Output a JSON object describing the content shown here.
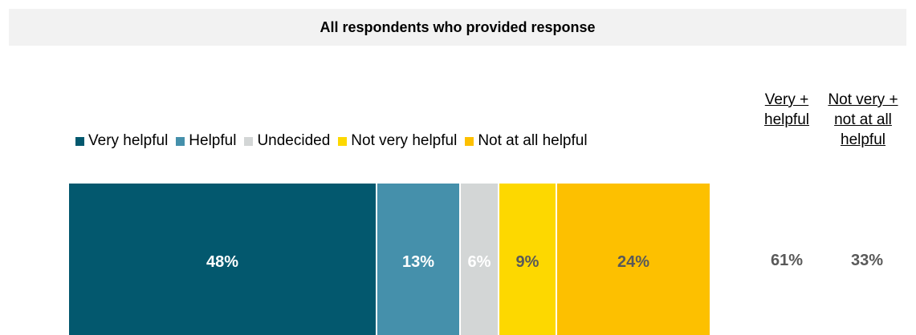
{
  "chart_data": {
    "type": "bar",
    "orientation": "horizontal-stacked",
    "title": "All respondents who provided response",
    "categories": [
      ""
    ],
    "series": [
      {
        "name": "Very helpful",
        "values": [
          48
        ],
        "label": "48%",
        "color": "#03586e"
      },
      {
        "name": "Helpful",
        "values": [
          13
        ],
        "label": "13%",
        "color": "#4590ab"
      },
      {
        "name": "Undecided",
        "values": [
          6
        ],
        "label": "6%",
        "color": "#d3d6d6"
      },
      {
        "name": "Not very helpful",
        "values": [
          9
        ],
        "label": "9%",
        "color": "#fdd800"
      },
      {
        "name": "Not at all helpful",
        "values": [
          24
        ],
        "label": "24%",
        "color": "#fdc000"
      }
    ],
    "summary_columns": [
      {
        "header": [
          "Very +",
          "helpful"
        ],
        "value": "61%"
      },
      {
        "header": [
          "Not very +",
          "not at all",
          "helpful"
        ],
        "value": "33%"
      }
    ],
    "legend_position": "top",
    "grid": false
  }
}
